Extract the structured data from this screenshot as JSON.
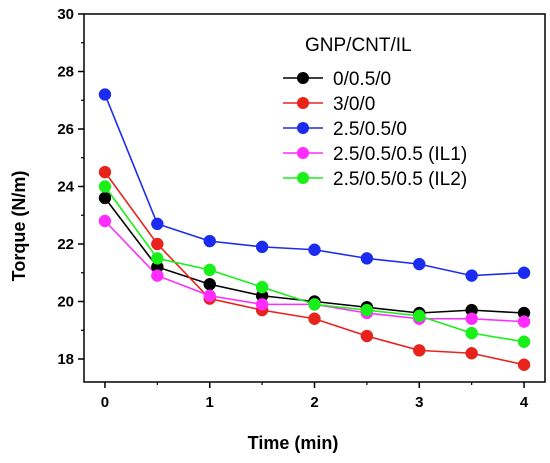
{
  "chart_data": {
    "type": "line",
    "xlabel": "Time (min)",
    "ylabel": "Torque (N/m)",
    "xlim": [
      -0.2,
      4.2
    ],
    "ylim": [
      17.2,
      30
    ],
    "xticks": [
      0,
      1,
      2,
      3,
      4
    ],
    "yticks": [
      18,
      20,
      22,
      24,
      26,
      28,
      30
    ],
    "x": [
      0,
      0.5,
      1,
      1.5,
      2,
      2.5,
      3,
      3.5,
      4
    ],
    "grid": false,
    "legend": {
      "title": "GNP/CNT/IL",
      "placement": "top-right"
    },
    "series": [
      {
        "name": "0/0.5/0",
        "color": "#000000",
        "values": [
          23.6,
          21.2,
          20.6,
          20.2,
          20.0,
          19.8,
          19.6,
          19.7,
          19.6
        ]
      },
      {
        "name": "3/0/0",
        "color": "#e8231c",
        "values": [
          24.5,
          22.0,
          20.1,
          19.7,
          19.4,
          18.8,
          18.3,
          18.2,
          17.8
        ]
      },
      {
        "name": "2.5/0.5/0",
        "color": "#1b2cf0",
        "values": [
          27.2,
          22.7,
          22.1,
          21.9,
          21.8,
          21.5,
          21.3,
          20.9,
          21.0
        ]
      },
      {
        "name": "2.5/0.5/0.5 (IL1)",
        "color": "#ff2bff",
        "values": [
          22.8,
          20.9,
          20.2,
          19.9,
          19.9,
          19.6,
          19.4,
          19.4,
          19.3
        ]
      },
      {
        "name": "2.5/0.5/0.5 (IL2)",
        "color": "#19f019",
        "values": [
          24.0,
          21.5,
          21.1,
          20.5,
          19.9,
          19.7,
          19.5,
          18.9,
          18.6
        ]
      }
    ]
  }
}
